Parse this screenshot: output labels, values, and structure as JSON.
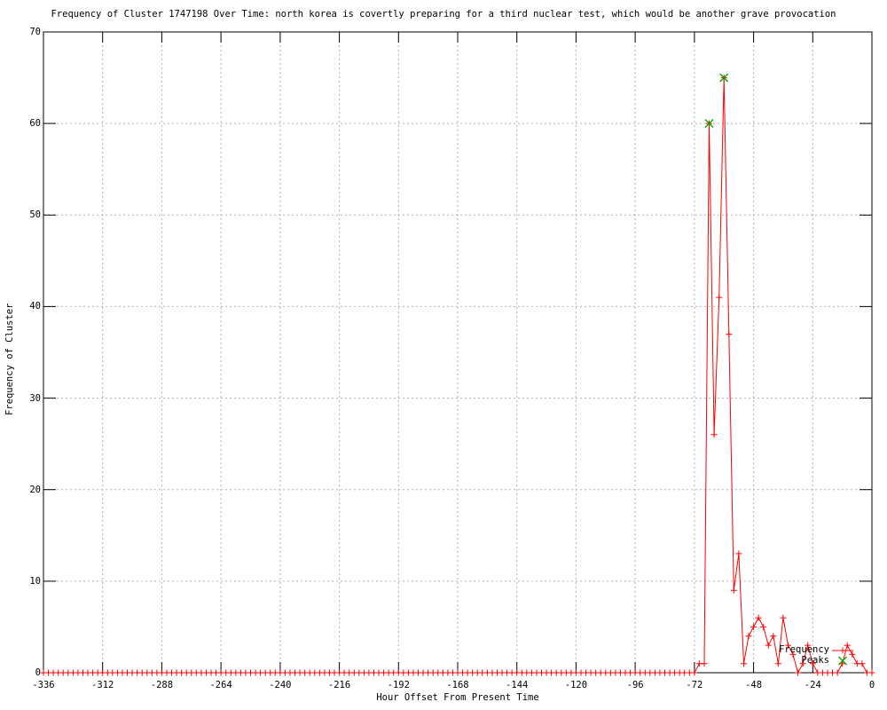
{
  "title": "Frequency of Cluster 1747198 Over Time: north korea is covertly preparing for a third nuclear test, which would be another grave provocation",
  "colors": {
    "frequency_series": "#ff0000",
    "peaks_series": "#00a800",
    "grid": "#b0b0b0",
    "frame": "#000000",
    "background": "#ffffff",
    "text": "#000000"
  },
  "legend": {
    "entries": [
      {
        "label": "Frequency",
        "marker": "plus",
        "style": "line-with-points",
        "color": "#ff0000"
      },
      {
        "label": "Peaks",
        "marker": "cross",
        "style": "points-only",
        "color": "#00a800"
      }
    ]
  },
  "chart_data": {
    "type": "line",
    "title": "Frequency of Cluster 1747198 Over Time: north korea is covertly preparing for a third nuclear test, which would be another grave provocation",
    "xlabel": "Hour Offset From Present Time",
    "ylabel": "Frequency of Cluster",
    "xlim": [
      -336,
      0
    ],
    "ylim": [
      0,
      70
    ],
    "xticks": [
      -336,
      -312,
      -288,
      -264,
      -240,
      -216,
      -192,
      -168,
      -144,
      -120,
      -96,
      -72,
      -48,
      -24,
      0
    ],
    "yticks": [
      0,
      10,
      20,
      30,
      40,
      50,
      60,
      70
    ],
    "grid": true,
    "legend_position": "inside-bottom-right",
    "x_start": -336,
    "x_step": 2,
    "series": [
      {
        "name": "Frequency",
        "marker": "plus",
        "color": "#ff0000",
        "values": [
          0,
          0,
          0,
          0,
          0,
          0,
          0,
          0,
          0,
          0,
          0,
          0,
          0,
          0,
          0,
          0,
          0,
          0,
          0,
          0,
          0,
          0,
          0,
          0,
          0,
          0,
          0,
          0,
          0,
          0,
          0,
          0,
          0,
          0,
          0,
          0,
          0,
          0,
          0,
          0,
          0,
          0,
          0,
          0,
          0,
          0,
          0,
          0,
          0,
          0,
          0,
          0,
          0,
          0,
          0,
          0,
          0,
          0,
          0,
          0,
          0,
          0,
          0,
          0,
          0,
          0,
          0,
          0,
          0,
          0,
          0,
          0,
          0,
          0,
          0,
          0,
          0,
          0,
          0,
          0,
          0,
          0,
          0,
          0,
          0,
          0,
          0,
          0,
          0,
          0,
          0,
          0,
          0,
          0,
          0,
          0,
          0,
          0,
          0,
          0,
          0,
          0,
          0,
          0,
          0,
          0,
          0,
          0,
          0,
          0,
          0,
          0,
          0,
          0,
          0,
          0,
          0,
          0,
          0,
          0,
          0,
          0,
          0,
          0,
          0,
          0,
          0,
          0,
          0,
          0,
          0,
          0,
          0,
          1,
          1,
          60,
          26,
          41,
          65,
          37,
          9,
          13,
          1,
          4,
          5,
          6,
          5,
          3,
          4,
          1,
          6,
          3,
          2,
          0,
          1,
          3,
          1,
          0,
          0,
          0,
          0,
          0,
          1,
          3,
          2,
          1,
          1,
          0,
          0
        ]
      },
      {
        "name": "Peaks",
        "marker": "cross",
        "color": "#00a800",
        "points": [
          [
            -66,
            60
          ],
          [
            -60,
            65
          ]
        ]
      }
    ]
  }
}
